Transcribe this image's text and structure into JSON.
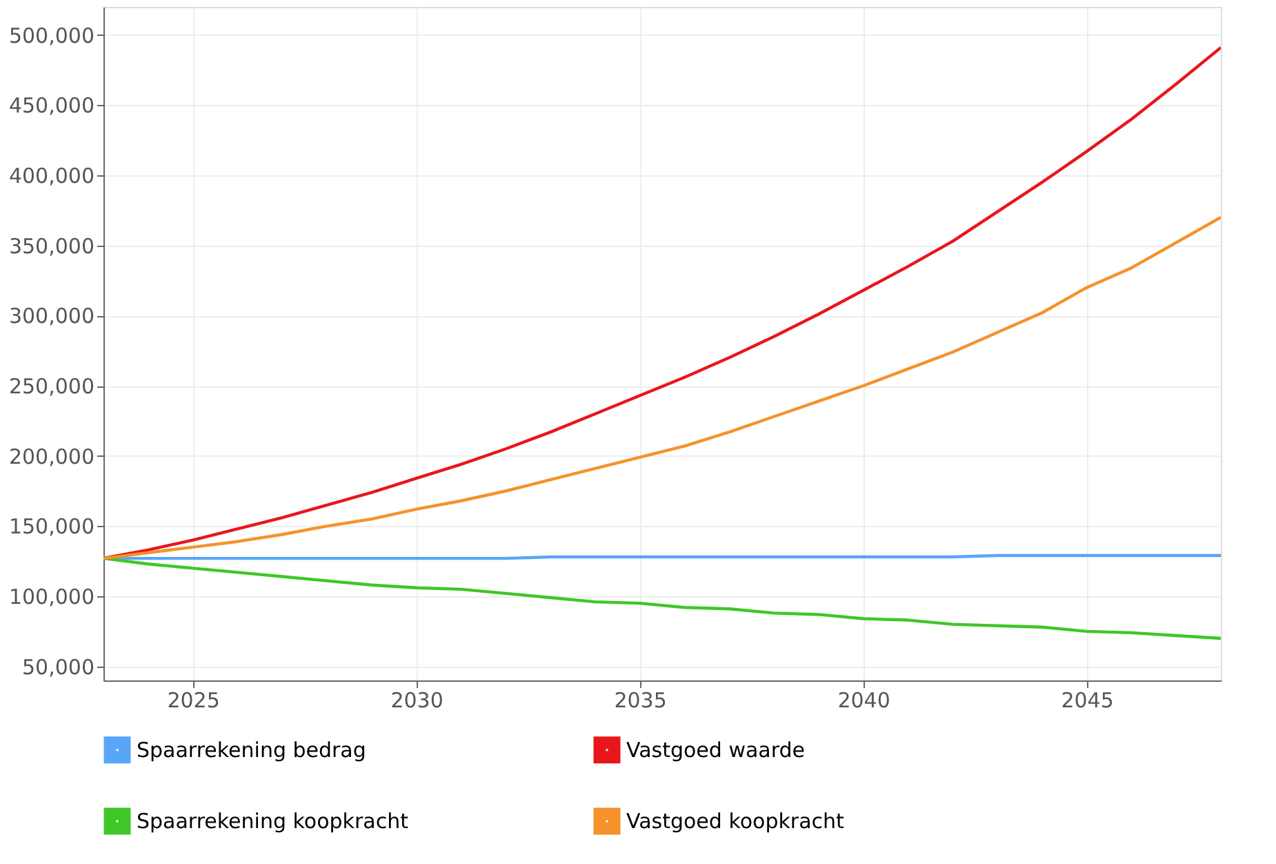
{
  "chart_data": {
    "type": "line",
    "x": [
      2023,
      2024,
      2025,
      2026,
      2027,
      2028,
      2029,
      2030,
      2031,
      2032,
      2033,
      2034,
      2035,
      2036,
      2037,
      2038,
      2039,
      2040,
      2041,
      2042,
      2043,
      2044,
      2045,
      2046,
      2047,
      2048
    ],
    "series": [
      {
        "name": "Spaarrekening bedrag",
        "color": "#58a6f8",
        "values": [
          127000,
          127000,
          127000,
          127000,
          127000,
          127000,
          127000,
          127000,
          127000,
          127000,
          128000,
          128000,
          128000,
          128000,
          128000,
          128000,
          128000,
          128000,
          128000,
          128000,
          129000,
          129000,
          129000,
          129000,
          129000,
          129000
        ]
      },
      {
        "name": "Vastgoed waarde",
        "color": "#e8161b",
        "values": [
          127000,
          133000,
          140000,
          148000,
          156000,
          165000,
          174000,
          184000,
          194000,
          205000,
          217000,
          230000,
          243000,
          256000,
          270000,
          285000,
          301000,
          318000,
          335000,
          353000,
          374000,
          395000,
          417000,
          440000,
          465000,
          491000
        ]
      },
      {
        "name": "Spaarrekening koopkracht",
        "color": "#3fc628",
        "values": [
          127000,
          123000,
          120000,
          117000,
          114000,
          111000,
          108000,
          106000,
          105000,
          102000,
          99000,
          96000,
          95000,
          92000,
          91000,
          88000,
          87000,
          84000,
          83000,
          80000,
          79000,
          78000,
          75000,
          74000,
          72000,
          70000
        ]
      },
      {
        "name": "Vastgoed koopkracht",
        "color": "#f5922b",
        "values": [
          127000,
          131000,
          135000,
          139000,
          144000,
          150000,
          155000,
          162000,
          168000,
          175000,
          183000,
          191000,
          199000,
          207000,
          217000,
          228000,
          239000,
          250000,
          262000,
          274000,
          288000,
          302000,
          320000,
          334000,
          352000,
          370000
        ]
      }
    ],
    "xlim": [
      2023,
      2048
    ],
    "xticks": [
      2025,
      2030,
      2035,
      2040,
      2045
    ],
    "ylim": [
      40000,
      520000
    ],
    "yticks": [
      {
        "value": 50000,
        "label": "50,000"
      },
      {
        "value": 100000,
        "label": "100,000"
      },
      {
        "value": 150000,
        "label": "150,000"
      },
      {
        "value": 200000,
        "label": "200,000"
      },
      {
        "value": 250000,
        "label": "250,000"
      },
      {
        "value": 300000,
        "label": "300,000"
      },
      {
        "value": 350000,
        "label": "350,000"
      },
      {
        "value": 400000,
        "label": "400,000"
      },
      {
        "value": 450000,
        "label": "450,000"
      },
      {
        "value": 500000,
        "label": "500,000"
      }
    ],
    "grid": true,
    "legend": "bottom",
    "marker": "none",
    "line_style": "solid"
  }
}
